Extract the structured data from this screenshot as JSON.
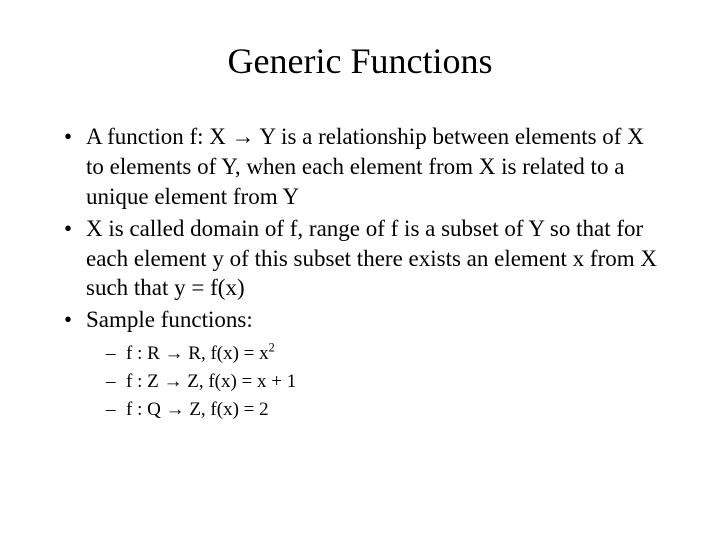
{
  "title": "Generic Functions",
  "bullets": {
    "b1": "A function f: X → Y is a relationship between elements of X to elements of Y, when each element from X is related to a unique element from Y",
    "b2": "X is called domain of f, range of f is a subset of Y so that for each element y of this subset there exists an element x from X such that y = f(x)",
    "b3": "Sample functions:"
  },
  "subs": {
    "s1a": "f : R → R, f(x) = x",
    "s1sup": "2",
    "s2": "f : Z → Z, f(x) = x + 1",
    "s3": "f : Q → Z, f(x) = 2"
  },
  "style": {
    "title_fontsize": 36,
    "body_fontsize": 23,
    "sub_fontsize": 19,
    "text_color": "#000000",
    "background_color": "#ffffff",
    "font_family": "Times New Roman"
  }
}
